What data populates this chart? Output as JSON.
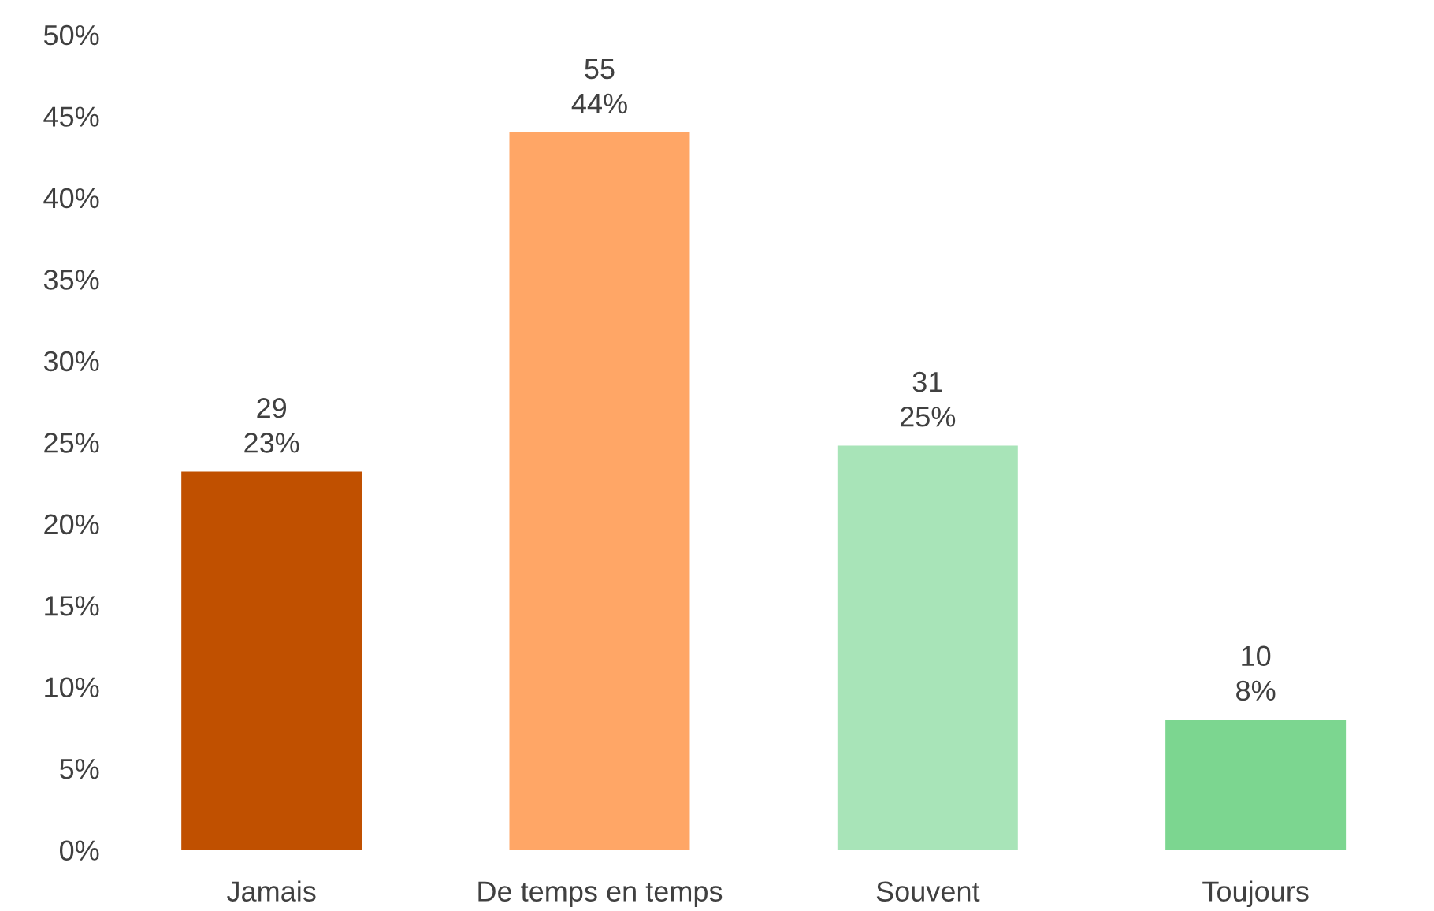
{
  "chart_data": {
    "type": "bar",
    "categories": [
      "Jamais",
      "De temps en temps",
      "Souvent",
      "Toujours"
    ],
    "values": [
      23.2,
      44,
      24.8,
      8
    ],
    "colors": [
      "#c05000",
      "#ffa666",
      "#a8e4b8",
      "#7cd690"
    ],
    "value_labels": [
      "29\n23%",
      "55\n44%",
      "31\n25%",
      "10\n8%"
    ],
    "ylim": [
      0,
      50
    ],
    "yticks": [
      {
        "value": 0,
        "label": "0%"
      },
      {
        "value": 5,
        "label": "5%"
      },
      {
        "value": 10,
        "label": "10%"
      },
      {
        "value": 15,
        "label": "15%"
      },
      {
        "value": 20,
        "label": "20%"
      },
      {
        "value": 25,
        "label": "25%"
      },
      {
        "value": 30,
        "label": "30%"
      },
      {
        "value": 35,
        "label": "35%"
      },
      {
        "value": 40,
        "label": "40%"
      },
      {
        "value": 45,
        "label": "45%"
      },
      {
        "value": 50,
        "label": "50%"
      }
    ],
    "grid": false
  }
}
